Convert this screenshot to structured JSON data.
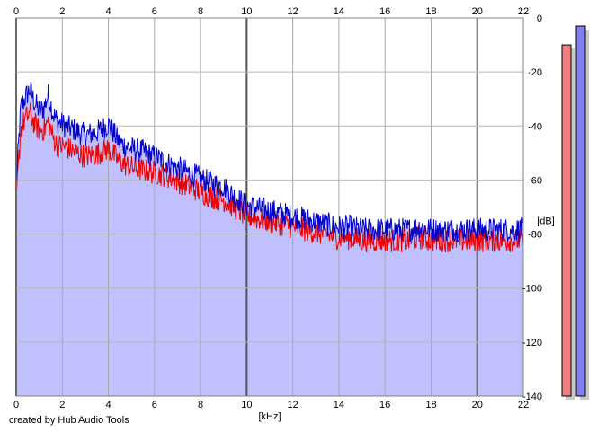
{
  "chart_data": {
    "type": "area",
    "xlabel": "[kHz]",
    "ylabel": "[dB]",
    "xlim": [
      0,
      22
    ],
    "ylim": [
      -140,
      0
    ],
    "x_ticks": [
      "0",
      "2",
      "4",
      "6",
      "8",
      "10",
      "12",
      "14",
      "16",
      "18",
      "20",
      "22"
    ],
    "y_ticks": [
      "0",
      "-20",
      "-40",
      "-60",
      "-80",
      "-100",
      "-120",
      "-140"
    ],
    "grid": true,
    "series": [
      {
        "color": "#0000cc",
        "fill": "#c0c0ff",
        "x": [
          0,
          0.2,
          0.4,
          0.6,
          0.8,
          1.0,
          1.2,
          1.4,
          1.6,
          1.8,
          2.0,
          2.5,
          3.0,
          3.5,
          4.0,
          4.5,
          5.0,
          5.5,
          6.0,
          6.5,
          7.0,
          7.5,
          8.0,
          8.5,
          9.0,
          9.5,
          10.0,
          10.5,
          11.0,
          11.5,
          12.0,
          12.5,
          13.0,
          13.5,
          14.0,
          14.5,
          15.0,
          15.5,
          16.0,
          16.5,
          17.0,
          17.5,
          18.0,
          18.5,
          19.0,
          19.5,
          20.0,
          20.5,
          21.0,
          21.5,
          22.0
        ],
        "y": [
          -60,
          -32,
          -28,
          -25,
          -30,
          -33,
          -32,
          -27,
          -34,
          -37,
          -38,
          -40,
          -42,
          -41,
          -38,
          -45,
          -47,
          -48,
          -50,
          -52,
          -54,
          -56,
          -58,
          -60,
          -61,
          -65,
          -68,
          -69,
          -70,
          -71,
          -72,
          -73,
          -74,
          -75,
          -76,
          -76,
          -77,
          -77,
          -77,
          -77,
          -77,
          -76,
          -77,
          -77,
          -77,
          -77,
          -77,
          -77,
          -77,
          -77,
          -77
        ]
      },
      {
        "color": "#ee0000",
        "fill": "#c0c0ff",
        "x": [
          0,
          0.2,
          0.4,
          0.6,
          0.8,
          1.0,
          1.2,
          1.4,
          1.6,
          1.8,
          2.0,
          2.5,
          3.0,
          3.5,
          4.0,
          4.5,
          5.0,
          5.5,
          6.0,
          6.5,
          7.0,
          7.5,
          8.0,
          8.5,
          9.0,
          9.5,
          10.0,
          10.5,
          11.0,
          11.5,
          12.0,
          12.5,
          13.0,
          13.5,
          14.0,
          14.5,
          15.0,
          15.5,
          16.0,
          16.5,
          17.0,
          17.5,
          18.0,
          18.5,
          19.0,
          19.5,
          20.0,
          20.5,
          21.0,
          21.5,
          22.0
        ],
        "y": [
          -66,
          -40,
          -36,
          -34,
          -38,
          -40,
          -40,
          -37,
          -43,
          -46,
          -46,
          -48,
          -50,
          -49,
          -47,
          -52,
          -54,
          -55,
          -56,
          -57,
          -59,
          -61,
          -63,
          -65,
          -66,
          -69,
          -72,
          -73,
          -74,
          -75,
          -76,
          -77,
          -78,
          -79,
          -80,
          -80,
          -81,
          -81,
          -81,
          -81,
          -81,
          -80,
          -81,
          -81,
          -81,
          -81,
          -81,
          -81,
          -81,
          -81,
          -81
        ]
      }
    ],
    "level_meters": [
      {
        "color": "#f08080",
        "level_db": -10
      },
      {
        "color": "#8080f0",
        "level_db": -3
      }
    ]
  },
  "footer": {
    "credit": "created by Hub Audio Tools"
  }
}
